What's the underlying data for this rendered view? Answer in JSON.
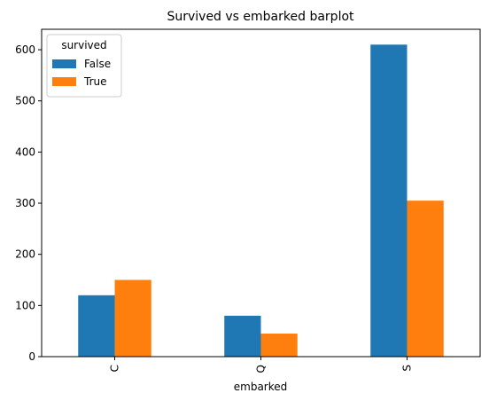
{
  "chart_data": {
    "type": "bar",
    "title": "Survived vs embarked barplot",
    "xlabel": "embarked",
    "ylabel": "",
    "categories": [
      "C",
      "Q",
      "S"
    ],
    "series": [
      {
        "name": "False",
        "values": [
          120,
          80,
          610
        ],
        "color": "#1f77b4"
      },
      {
        "name": "True",
        "values": [
          150,
          45,
          305
        ],
        "color": "#ff7f0e"
      }
    ],
    "ylim": [
      0,
      640
    ],
    "yticks": [
      0,
      100,
      200,
      300,
      400,
      500,
      600
    ],
    "grid": false,
    "legend": {
      "title": "survived",
      "placement": "top-left"
    }
  }
}
